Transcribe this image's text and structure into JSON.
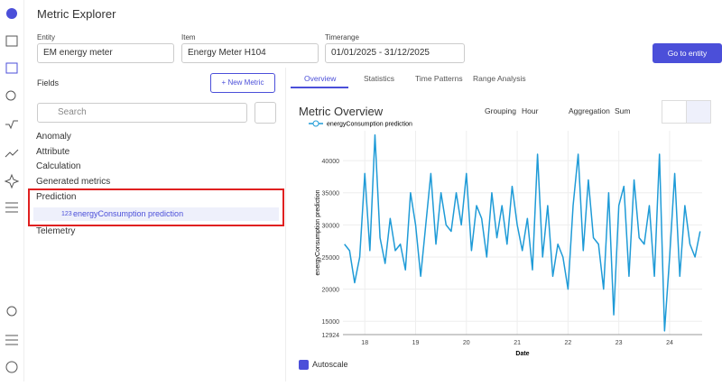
{
  "app": {
    "title": "Metric Explorer"
  },
  "filters": {
    "entity_label": "Entity",
    "entity_value": "EM energy meter",
    "item_label": "Item",
    "item_value": "Energy Meter H104",
    "timerange_label": "Timerange",
    "timerange_value": "01/01/2025 - 31/12/2025",
    "go_button": "Go to entity"
  },
  "fields": {
    "title": "Fields",
    "new_metric": "+ New Metric",
    "search_placeholder": "Search",
    "groups": [
      "Anomaly",
      "Attribute",
      "Calculation",
      "Generated metrics",
      "Prediction",
      "Telemetry"
    ],
    "prediction_item_icon": "123",
    "prediction_item": "energyConsumption prediction"
  },
  "tabs": [
    "Overview",
    "Statistics",
    "Time Patterns",
    "Range Analysis"
  ],
  "controls": {
    "grouping_label": "Grouping",
    "grouping_value": "Hour",
    "aggregation_label": "Aggregation",
    "aggregation_value": "Sum",
    "autoscale": "Autoscale"
  },
  "chart_data": {
    "type": "line",
    "title": "Metric Overview",
    "x_label": "Date",
    "y_label": "energyConsumption prediction",
    "x": [
      17.6,
      17.7,
      17.8,
      17.9,
      18.0,
      18.1,
      18.2,
      18.3,
      18.4,
      18.5,
      18.6,
      18.7,
      18.8,
      18.9,
      19.0,
      19.1,
      19.2,
      19.3,
      19.4,
      19.5,
      19.6,
      19.7,
      19.8,
      19.9,
      20.0,
      20.1,
      20.2,
      20.3,
      20.4,
      20.5,
      20.6,
      20.7,
      20.8,
      20.9,
      21.0,
      21.1,
      21.2,
      21.3,
      21.4,
      21.5,
      21.6,
      21.7,
      21.8,
      21.9,
      22.0,
      22.1,
      22.2,
      22.3,
      22.4,
      22.5,
      22.6,
      22.7,
      22.8,
      22.9,
      23.0,
      23.1,
      23.2,
      23.3,
      23.4,
      23.5,
      23.6,
      23.7,
      23.8,
      23.9,
      24.0,
      24.1,
      24.2,
      24.3,
      24.4,
      24.5,
      24.6
    ],
    "series": [
      {
        "name": "energyConsumption prediction",
        "color": "#1f9bd7",
        "values": [
          27000,
          26000,
          21000,
          25000,
          38000,
          26000,
          44000,
          28000,
          24000,
          31000,
          26000,
          27000,
          23000,
          35000,
          30000,
          22000,
          30000,
          38000,
          27000,
          35000,
          30000,
          29000,
          35000,
          30000,
          38000,
          26000,
          33000,
          31000,
          25000,
          35000,
          28000,
          33000,
          27000,
          36000,
          30000,
          26000,
          31000,
          23000,
          41000,
          25000,
          33000,
          22000,
          27000,
          25000,
          20000,
          33000,
          41000,
          26000,
          37000,
          28000,
          27000,
          20000,
          35000,
          16000,
          33000,
          36000,
          22000,
          37000,
          28000,
          27000,
          33000,
          22000,
          41000,
          13500,
          25000,
          38000,
          22000,
          33000,
          27000,
          25000,
          29000
        ]
      }
    ],
    "xlim": [
      17.57,
      24.64
    ],
    "xticks": [
      18,
      19,
      20,
      21,
      22,
      23,
      24
    ],
    "ylim": [
      12924,
      44650
    ],
    "yticks": [
      12924,
      15000,
      20000,
      25000,
      30000,
      35000,
      40000
    ],
    "grid": true
  }
}
